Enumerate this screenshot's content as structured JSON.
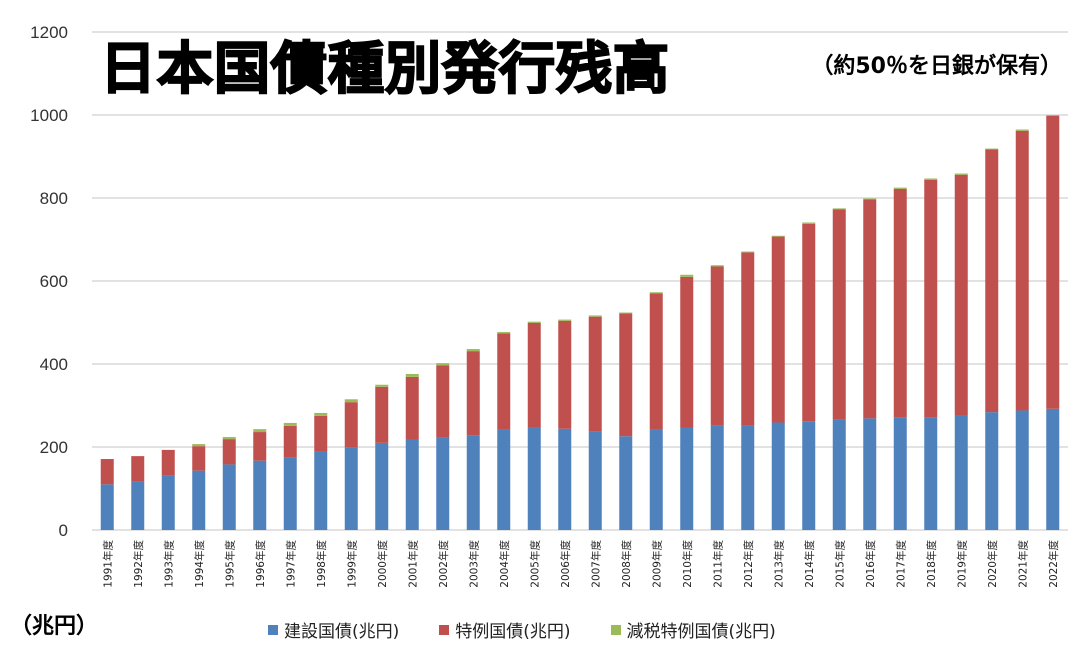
{
  "chart_data": {
    "type": "bar",
    "stacked": true,
    "title": "日本国債種別発行残高",
    "subtitle": "（約50％を日銀が保有）",
    "ylabel": "（兆円）",
    "xlabel": "",
    "ylim": [
      0,
      1200
    ],
    "yticks": [
      "0",
      "200",
      "400",
      "600",
      "800",
      "1000",
      "1200"
    ],
    "ytick_values": [
      0,
      200,
      400,
      600,
      800,
      1000,
      1200
    ],
    "grid": true,
    "legend_position": "bottom",
    "categories": [
      "1991年度",
      "1992年度",
      "1993年度",
      "1994年度",
      "1995年度",
      "1996年度",
      "1997年度",
      "1998年度",
      "1999年度",
      "2000年度",
      "2001年度",
      "2002年度",
      "2003年度",
      "2004年度",
      "2005年度",
      "2006年度",
      "2007年度",
      "2008年度",
      "2009年度",
      "2010年度",
      "2011年度",
      "2012年度",
      "2013年度",
      "2014年度",
      "2015年度",
      "2016年度",
      "2017年度",
      "2018年度",
      "2019年度",
      "2020年度",
      "2021年度",
      "2022年度"
    ],
    "series": [
      {
        "name": "建設国債(兆円)",
        "color": "#4f81bd",
        "values": [
          110,
          116,
          131,
          143,
          158,
          167,
          174,
          189,
          198,
          210,
          218,
          222,
          227,
          242,
          246,
          244,
          237,
          226,
          242,
          247,
          251,
          252,
          259,
          262,
          266,
          269,
          272,
          272,
          276,
          284,
          288,
          292
        ]
      },
      {
        "name": "特例国債(兆円)",
        "color": "#c0504d",
        "values": [
          61,
          62,
          62,
          59,
          61,
          69,
          77,
          86,
          110,
          135,
          151,
          175,
          204,
          232,
          253,
          260,
          277,
          296,
          328,
          363,
          384,
          417,
          448,
          476,
          507,
          528,
          550,
          572,
          580,
          633,
          674,
          706
        ]
      },
      {
        "name": "減税特例国債(兆円)",
        "color": "#9bbb59",
        "values": [
          0,
          0,
          0,
          5,
          5,
          7,
          7,
          7,
          7,
          5,
          7,
          5,
          5,
          3,
          3,
          3,
          3,
          2,
          3,
          5,
          3,
          2,
          2,
          3,
          2,
          2,
          3,
          3,
          3,
          2,
          3,
          2
        ]
      }
    ]
  }
}
